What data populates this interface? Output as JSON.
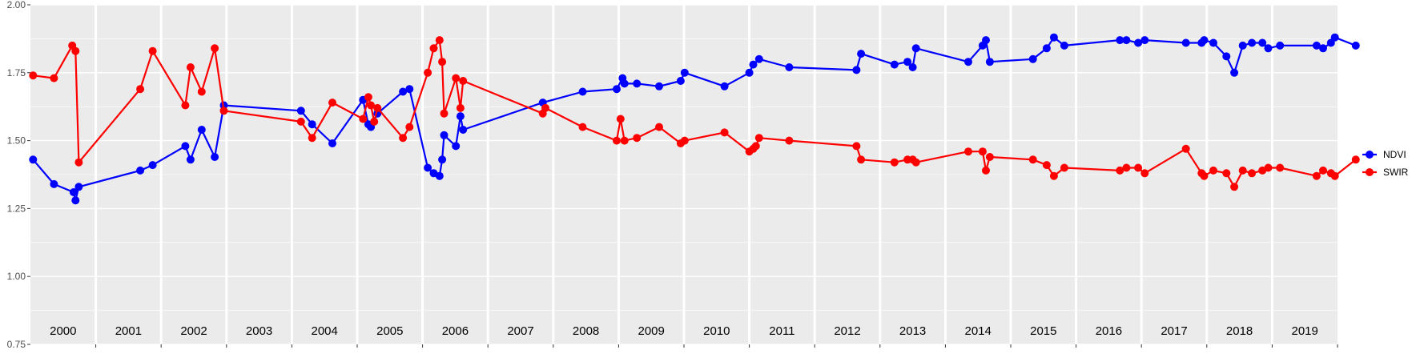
{
  "chart_data": {
    "type": "line",
    "title": "",
    "xlabel": "",
    "ylabel": "",
    "ylim": [
      0.75,
      2.0
    ],
    "yticks": [
      "0.75",
      "1.00",
      "1.25",
      "1.50",
      "1.75",
      "2.00"
    ],
    "xlim": [
      2000.0,
      2020.0
    ],
    "year_labels": [
      "2000",
      "2001",
      "2002",
      "2003",
      "2004",
      "2005",
      "2006",
      "2007",
      "2008",
      "2009",
      "2010",
      "2011",
      "2012",
      "2013",
      "2014",
      "2015",
      "2016",
      "2017",
      "2018",
      "2019"
    ],
    "grid": true,
    "legend_position": "right",
    "series": [
      {
        "name": "NDVI",
        "color": "#0000ff",
        "points": [
          [
            2000.04,
            1.43
          ],
          [
            2000.36,
            1.34
          ],
          [
            2000.66,
            1.31
          ],
          [
            2000.69,
            1.28
          ],
          [
            2000.74,
            1.33
          ],
          [
            2001.68,
            1.39
          ],
          [
            2001.87,
            1.41
          ],
          [
            2002.37,
            1.48
          ],
          [
            2002.45,
            1.43
          ],
          [
            2002.62,
            1.54
          ],
          [
            2002.82,
            1.44
          ],
          [
            2002.96,
            1.63
          ],
          [
            2004.14,
            1.61
          ],
          [
            2004.31,
            1.56
          ],
          [
            2004.62,
            1.49
          ],
          [
            2005.09,
            1.65
          ],
          [
            2005.17,
            1.56
          ],
          [
            2005.21,
            1.55
          ],
          [
            2005.31,
            1.6
          ],
          [
            2005.7,
            1.68
          ],
          [
            2005.8,
            1.69
          ],
          [
            2006.08,
            1.4
          ],
          [
            2006.17,
            1.38
          ],
          [
            2006.26,
            1.37
          ],
          [
            2006.3,
            1.43
          ],
          [
            2006.33,
            1.52
          ],
          [
            2006.51,
            1.48
          ],
          [
            2006.58,
            1.59
          ],
          [
            2006.62,
            1.54
          ],
          [
            2007.84,
            1.64
          ],
          [
            2008.45,
            1.68
          ],
          [
            2008.97,
            1.69
          ],
          [
            2009.06,
            1.73
          ],
          [
            2009.09,
            1.71
          ],
          [
            2009.28,
            1.71
          ],
          [
            2009.62,
            1.7
          ],
          [
            2009.95,
            1.72
          ],
          [
            2010.01,
            1.75
          ],
          [
            2010.62,
            1.7
          ],
          [
            2011.0,
            1.75
          ],
          [
            2011.06,
            1.78
          ],
          [
            2011.15,
            1.8
          ],
          [
            2011.61,
            1.77
          ],
          [
            2012.64,
            1.76
          ],
          [
            2012.71,
            1.82
          ],
          [
            2013.22,
            1.78
          ],
          [
            2013.42,
            1.79
          ],
          [
            2013.5,
            1.77
          ],
          [
            2013.55,
            1.84
          ],
          [
            2014.35,
            1.79
          ],
          [
            2014.57,
            1.85
          ],
          [
            2014.62,
            1.87
          ],
          [
            2014.68,
            1.79
          ],
          [
            2015.34,
            1.8
          ],
          [
            2015.55,
            1.84
          ],
          [
            2015.66,
            1.88
          ],
          [
            2015.82,
            1.85
          ],
          [
            2016.67,
            1.87
          ],
          [
            2016.77,
            1.87
          ],
          [
            2016.95,
            1.86
          ],
          [
            2017.05,
            1.87
          ],
          [
            2017.68,
            1.86
          ],
          [
            2017.92,
            1.86
          ],
          [
            2017.96,
            1.87
          ],
          [
            2018.1,
            1.86
          ],
          [
            2018.3,
            1.81
          ],
          [
            2018.42,
            1.75
          ],
          [
            2018.55,
            1.85
          ],
          [
            2018.69,
            1.86
          ],
          [
            2018.85,
            1.86
          ],
          [
            2018.94,
            1.84
          ],
          [
            2019.12,
            1.85
          ],
          [
            2019.68,
            1.85
          ],
          [
            2019.78,
            1.84
          ],
          [
            2019.9,
            1.86
          ],
          [
            2019.96,
            1.88
          ],
          [
            2020.28,
            1.85
          ]
        ]
      },
      {
        "name": "SWIR",
        "color": "#ff0000",
        "points": [
          [
            2000.04,
            1.74
          ],
          [
            2000.36,
            1.73
          ],
          [
            2000.64,
            1.85
          ],
          [
            2000.69,
            1.83
          ],
          [
            2000.74,
            1.42
          ],
          [
            2001.68,
            1.69
          ],
          [
            2001.87,
            1.83
          ],
          [
            2002.37,
            1.63
          ],
          [
            2002.45,
            1.77
          ],
          [
            2002.62,
            1.68
          ],
          [
            2002.82,
            1.84
          ],
          [
            2002.96,
            1.61
          ],
          [
            2004.14,
            1.57
          ],
          [
            2004.31,
            1.51
          ],
          [
            2004.62,
            1.64
          ],
          [
            2005.09,
            1.58
          ],
          [
            2005.17,
            1.66
          ],
          [
            2005.21,
            1.63
          ],
          [
            2005.26,
            1.57
          ],
          [
            2005.31,
            1.62
          ],
          [
            2005.7,
            1.51
          ],
          [
            2005.8,
            1.55
          ],
          [
            2006.08,
            1.75
          ],
          [
            2006.17,
            1.84
          ],
          [
            2006.26,
            1.87
          ],
          [
            2006.3,
            1.79
          ],
          [
            2006.33,
            1.6
          ],
          [
            2006.51,
            1.73
          ],
          [
            2006.58,
            1.62
          ],
          [
            2006.62,
            1.72
          ],
          [
            2007.84,
            1.6
          ],
          [
            2007.88,
            1.62
          ],
          [
            2008.45,
            1.55
          ],
          [
            2008.97,
            1.5
          ],
          [
            2009.03,
            1.58
          ],
          [
            2009.09,
            1.5
          ],
          [
            2009.28,
            1.51
          ],
          [
            2009.62,
            1.55
          ],
          [
            2009.95,
            1.49
          ],
          [
            2010.01,
            1.5
          ],
          [
            2010.62,
            1.53
          ],
          [
            2011.0,
            1.46
          ],
          [
            2011.06,
            1.47
          ],
          [
            2011.1,
            1.48
          ],
          [
            2011.15,
            1.51
          ],
          [
            2011.61,
            1.5
          ],
          [
            2012.64,
            1.48
          ],
          [
            2012.71,
            1.43
          ],
          [
            2013.22,
            1.42
          ],
          [
            2013.42,
            1.43
          ],
          [
            2013.5,
            1.43
          ],
          [
            2013.55,
            1.42
          ],
          [
            2014.35,
            1.46
          ],
          [
            2014.57,
            1.46
          ],
          [
            2014.62,
            1.39
          ],
          [
            2014.68,
            1.44
          ],
          [
            2015.34,
            1.43
          ],
          [
            2015.55,
            1.41
          ],
          [
            2015.66,
            1.37
          ],
          [
            2015.82,
            1.4
          ],
          [
            2016.67,
            1.39
          ],
          [
            2016.77,
            1.4
          ],
          [
            2016.95,
            1.4
          ],
          [
            2017.05,
            1.38
          ],
          [
            2017.68,
            1.47
          ],
          [
            2017.92,
            1.38
          ],
          [
            2017.96,
            1.37
          ],
          [
            2018.1,
            1.39
          ],
          [
            2018.3,
            1.38
          ],
          [
            2018.42,
            1.33
          ],
          [
            2018.55,
            1.39
          ],
          [
            2018.69,
            1.38
          ],
          [
            2018.85,
            1.39
          ],
          [
            2018.94,
            1.4
          ],
          [
            2019.12,
            1.4
          ],
          [
            2019.68,
            1.37
          ],
          [
            2019.78,
            1.39
          ],
          [
            2019.9,
            1.38
          ],
          [
            2019.96,
            1.37
          ],
          [
            2020.28,
            1.43
          ]
        ]
      }
    ]
  }
}
